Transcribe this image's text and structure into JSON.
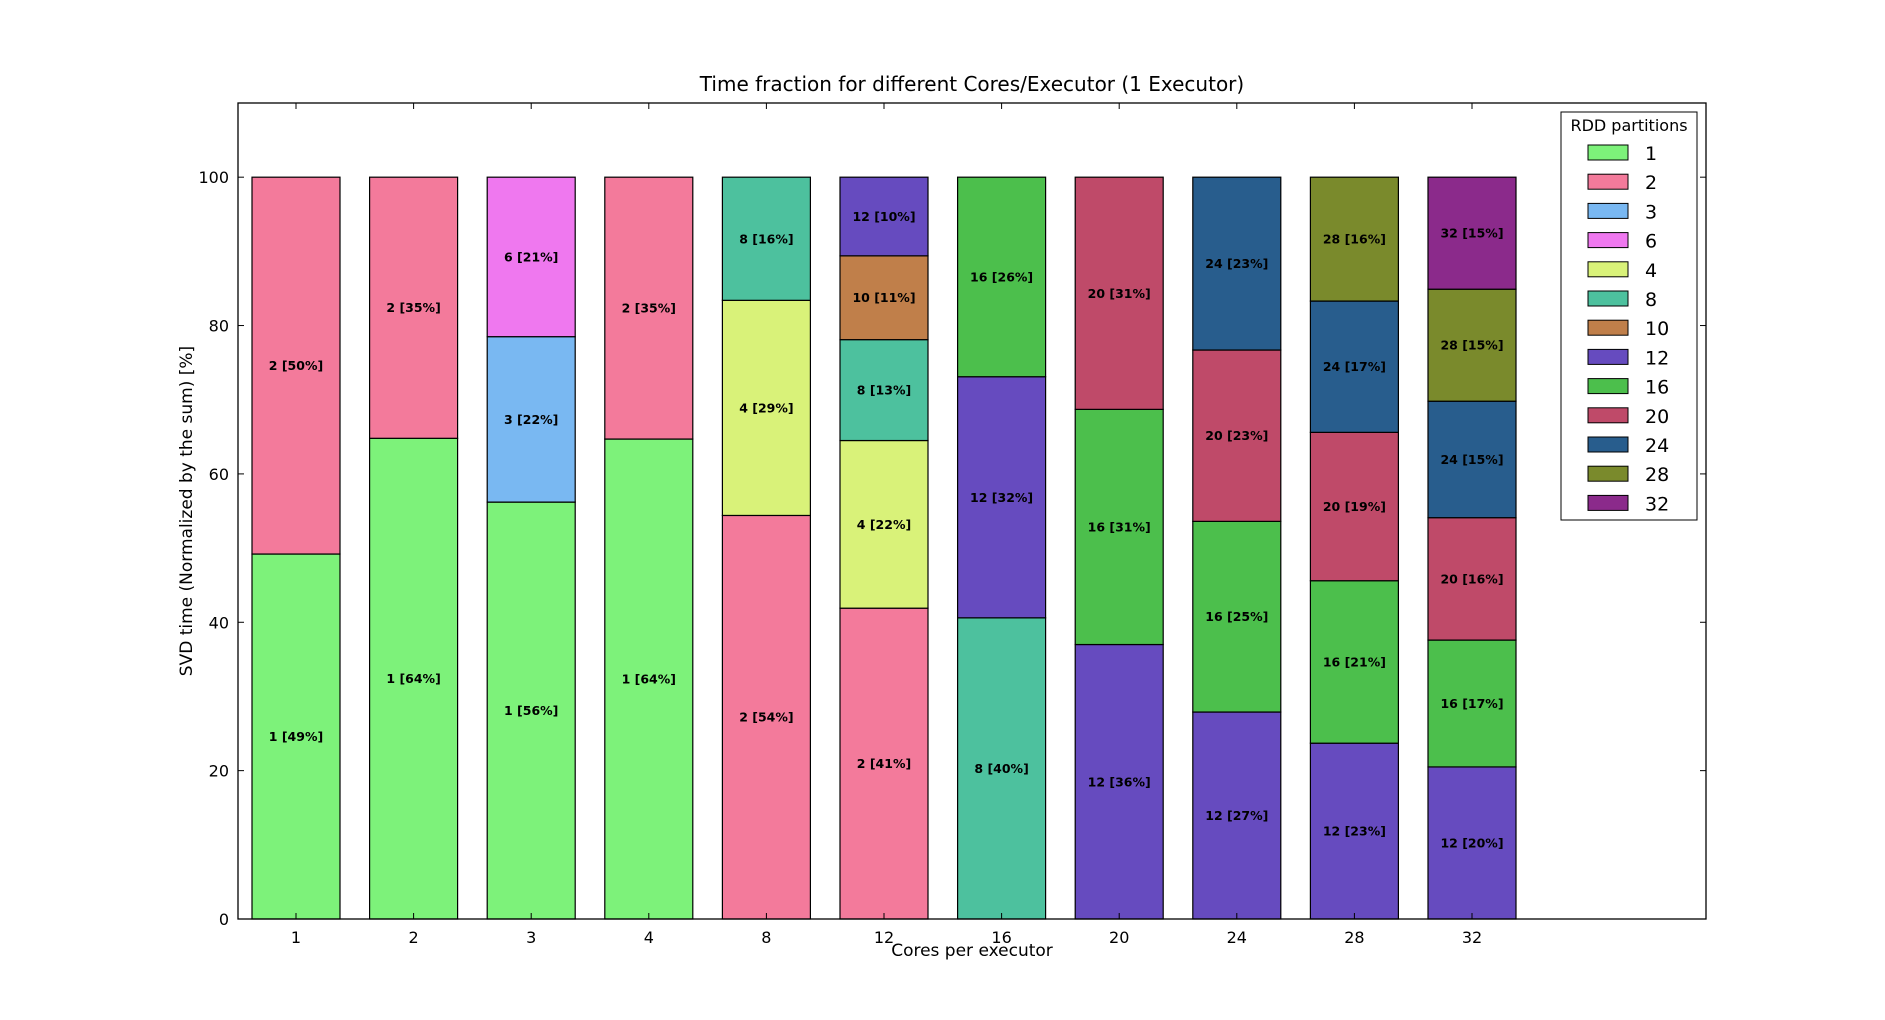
{
  "chart_data": {
    "type": "bar",
    "stacked": true,
    "title": "Time fraction for different Cores/Executor (1 Executor)",
    "xlabel": "Cores per executor",
    "ylabel": "SVD time (Normalized by the sum) [%]",
    "ylim": [
      0,
      110
    ],
    "yticks": [
      0,
      20,
      40,
      60,
      80,
      100
    ],
    "categories": [
      "1",
      "2",
      "3",
      "4",
      "8",
      "12",
      "16",
      "20",
      "24",
      "28",
      "32"
    ],
    "legend": {
      "title": "RDD partitions",
      "position": "top-right",
      "entries": [
        {
          "name": "1",
          "color": "#7df27a"
        },
        {
          "name": "2",
          "color": "#f37a9b"
        },
        {
          "name": "3",
          "color": "#79b8f2"
        },
        {
          "name": "6",
          "color": "#ef78ef"
        },
        {
          "name": "4",
          "color": "#d9f279"
        },
        {
          "name": "8",
          "color": "#4dc19e"
        },
        {
          "name": "10",
          "color": "#c07f4a"
        },
        {
          "name": "12",
          "color": "#664bbf"
        },
        {
          "name": "16",
          "color": "#4cbf4c"
        },
        {
          "name": "20",
          "color": "#bf4a69"
        },
        {
          "name": "24",
          "color": "#285d8d"
        },
        {
          "name": "28",
          "color": "#7a8a2c"
        },
        {
          "name": "32",
          "color": "#8b2a8b"
        }
      ]
    },
    "stacks": [
      {
        "category": "1",
        "segments": [
          {
            "series": "1",
            "value": 49.2,
            "label": "1 [49%]"
          },
          {
            "series": "2",
            "value": 50.8,
            "label": "2 [50%]"
          }
        ]
      },
      {
        "category": "2",
        "segments": [
          {
            "series": "1",
            "value": 64.8,
            "label": "1 [64%]"
          },
          {
            "series": "2",
            "value": 35.2,
            "label": "2 [35%]"
          }
        ]
      },
      {
        "category": "3",
        "segments": [
          {
            "series": "1",
            "value": 56.2,
            "label": "1 [56%]"
          },
          {
            "series": "3",
            "value": 22.3,
            "label": "3 [22%]"
          },
          {
            "series": "6",
            "value": 21.5,
            "label": "6 [21%]"
          }
        ]
      },
      {
        "category": "4",
        "segments": [
          {
            "series": "1",
            "value": 64.7,
            "label": "1 [64%]"
          },
          {
            "series": "2",
            "value": 35.3,
            "label": "2 [35%]"
          }
        ]
      },
      {
        "category": "8",
        "segments": [
          {
            "series": "2",
            "value": 54.4,
            "label": "2 [54%]"
          },
          {
            "series": "4",
            "value": 29.0,
            "label": "4 [29%]"
          },
          {
            "series": "8",
            "value": 16.6,
            "label": "8 [16%]"
          }
        ]
      },
      {
        "category": "12",
        "segments": [
          {
            "series": "2",
            "value": 41.9,
            "label": "2 [41%]"
          },
          {
            "series": "4",
            "value": 22.6,
            "label": "4 [22%]"
          },
          {
            "series": "8",
            "value": 13.6,
            "label": "8 [13%]"
          },
          {
            "series": "10",
            "value": 11.3,
            "label": "10 [11%]"
          },
          {
            "series": "12",
            "value": 10.6,
            "label": "12 [10%]"
          }
        ]
      },
      {
        "category": "16",
        "segments": [
          {
            "series": "8",
            "value": 40.6,
            "label": "8 [40%]"
          },
          {
            "series": "12",
            "value": 32.5,
            "label": "12 [32%]"
          },
          {
            "series": "16",
            "value": 26.9,
            "label": "16 [26%]"
          }
        ]
      },
      {
        "category": "20",
        "segments": [
          {
            "series": "12",
            "value": 37.0,
            "label": "12 [36%]"
          },
          {
            "series": "16",
            "value": 31.7,
            "label": "16 [31%]"
          },
          {
            "series": "20",
            "value": 31.3,
            "label": "20 [31%]"
          }
        ]
      },
      {
        "category": "24",
        "segments": [
          {
            "series": "12",
            "value": 27.9,
            "label": "12 [27%]"
          },
          {
            "series": "16",
            "value": 25.7,
            "label": "16 [25%]"
          },
          {
            "series": "20",
            "value": 23.1,
            "label": "20 [23%]"
          },
          {
            "series": "24",
            "value": 23.3,
            "label": "24 [23%]"
          }
        ]
      },
      {
        "category": "28",
        "segments": [
          {
            "series": "12",
            "value": 23.7,
            "label": "12 [23%]"
          },
          {
            "series": "16",
            "value": 21.9,
            "label": "16 [21%]"
          },
          {
            "series": "20",
            "value": 20.0,
            "label": "20 [19%]"
          },
          {
            "series": "24",
            "value": 17.7,
            "label": "24 [17%]"
          },
          {
            "series": "28",
            "value": 16.7,
            "label": "28 [16%]"
          }
        ]
      },
      {
        "category": "32",
        "segments": [
          {
            "series": "12",
            "value": 20.5,
            "label": "12 [20%]"
          },
          {
            "series": "16",
            "value": 17.1,
            "label": "16 [17%]"
          },
          {
            "series": "20",
            "value": 16.5,
            "label": "20 [16%]"
          },
          {
            "series": "24",
            "value": 15.7,
            "label": "24 [15%]"
          },
          {
            "series": "28",
            "value": 15.1,
            "label": "28 [15%]"
          },
          {
            "series": "32",
            "value": 15.1,
            "label": "32 [15%]"
          }
        ]
      }
    ]
  }
}
